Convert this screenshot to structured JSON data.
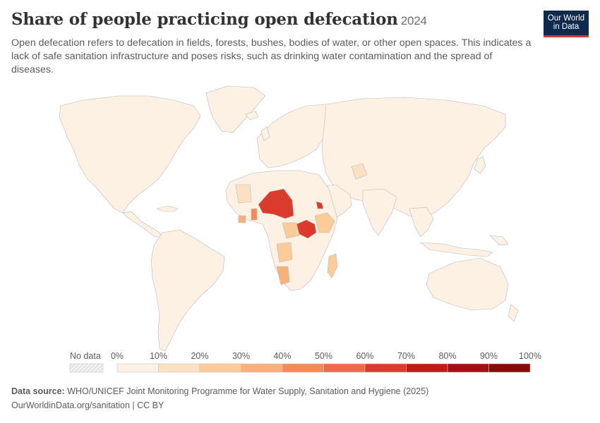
{
  "header": {
    "title": "Share of people practicing open defecation",
    "year": "2024",
    "subtitle": "Open defecation refers to defecation in fields, forests, bushes, bodies of water, or other open spaces. This indicates a lack of safe sanitation infrastructure and poses risks, such as drinking water contamination and the spread of diseases."
  },
  "logo": {
    "line1": "Our World",
    "line2": "in Data"
  },
  "legend": {
    "no_data_label": "No data",
    "ticks": [
      "0%",
      "10%",
      "20%",
      "30%",
      "40%",
      "50%",
      "60%",
      "70%",
      "80%",
      "90%",
      "100%"
    ],
    "colors": [
      "#fdf1e4",
      "#fce0c2",
      "#fbcb98",
      "#f9b07a",
      "#f58a58",
      "#ef6a4a",
      "#db3b2c",
      "#c01a14",
      "#a30e12",
      "#8a0808"
    ]
  },
  "map": {
    "base_fill": "#fdf1e4",
    "stroke": "#b9b9b9",
    "water": "#ffffff",
    "highlighted_regions": [
      {
        "name": "Niger–Chad belt",
        "level": "60-70%"
      },
      {
        "name": "South Sudan",
        "level": "60-70%"
      },
      {
        "name": "Eritrea",
        "level": "60-70%"
      },
      {
        "name": "Benin–Togo",
        "level": "40-50%"
      },
      {
        "name": "Namibia",
        "level": "30-40%"
      },
      {
        "name": "Ethiopia",
        "level": "20-30%"
      },
      {
        "name": "Madagascar",
        "level": "20-30%"
      }
    ]
  },
  "footer": {
    "source_label": "Data source:",
    "source_text": "WHO/UNICEF Joint Monitoring Programme for Water Supply, Sanitation and Hygiene (2025)",
    "url_text": "OurWorldinData.org/sanitation | CC BY"
  }
}
